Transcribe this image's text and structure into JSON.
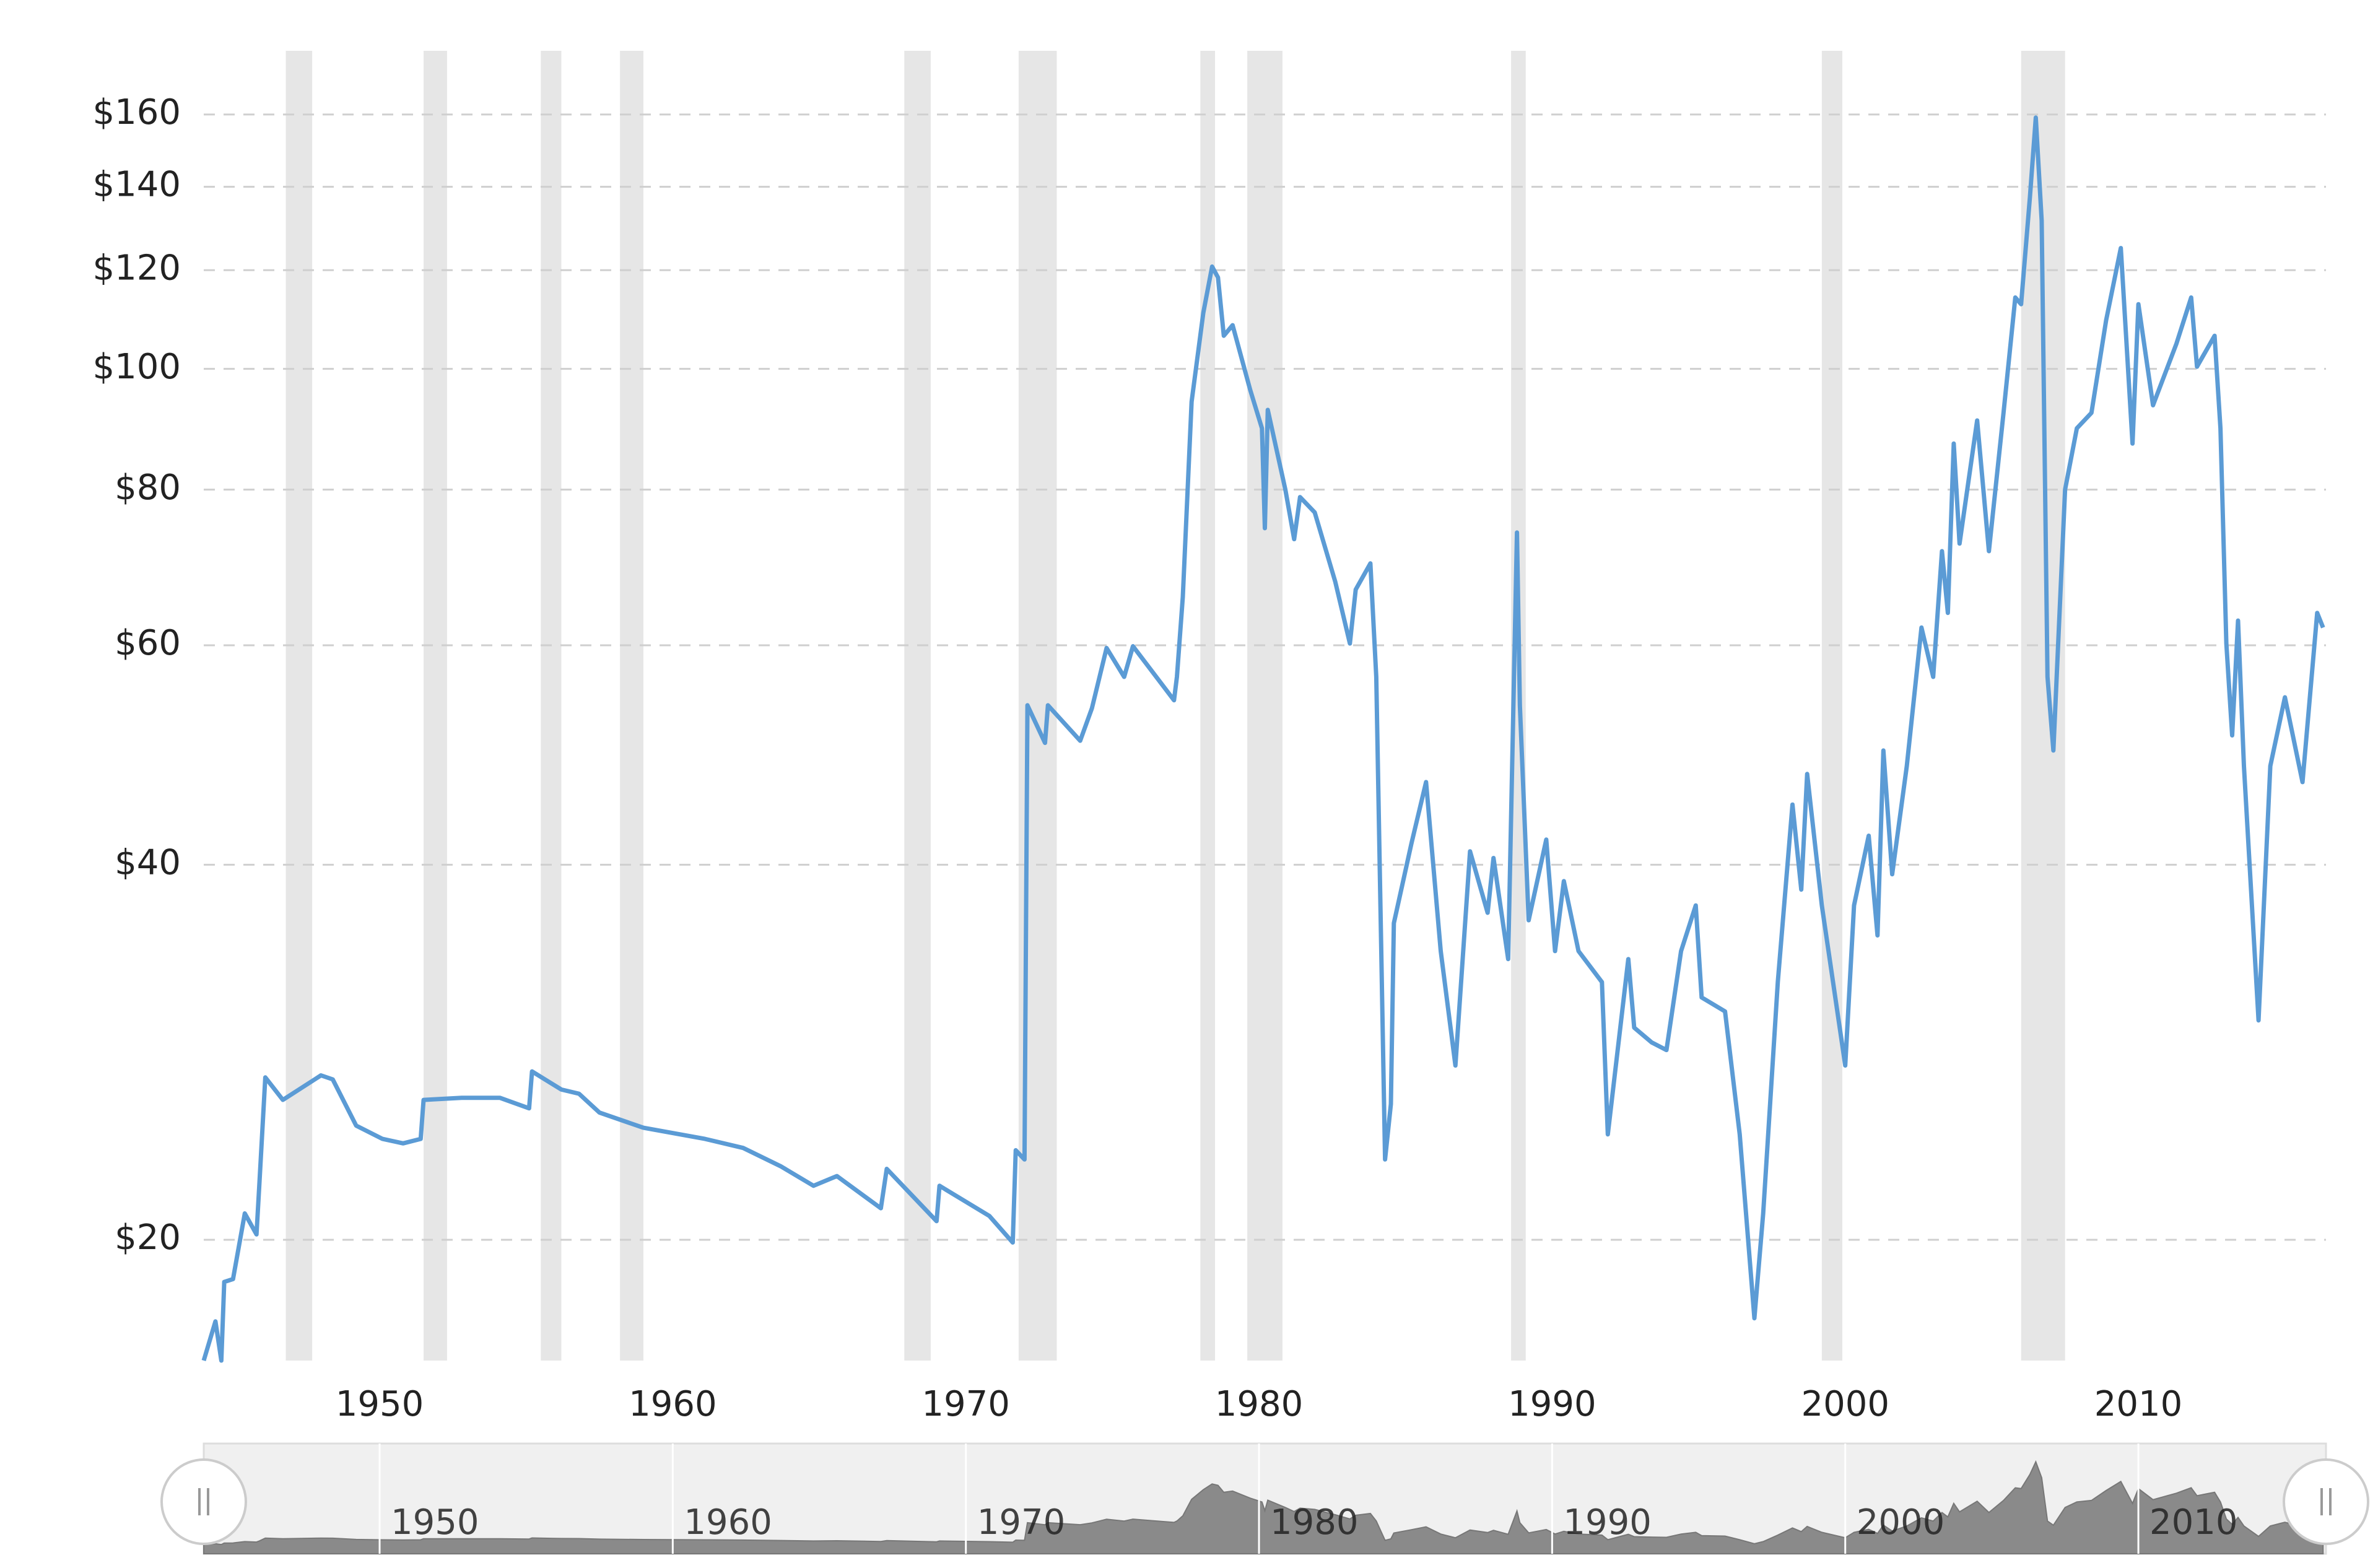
{
  "chart_data": {
    "type": "line",
    "color": "#5b9bd5",
    "ylog": true,
    "grid": true,
    "recession_color": "#e6e6e6",
    "xlim": [
      1944,
      2016.4
    ],
    "ylim": [
      16,
      180
    ],
    "xticks": [
      1950,
      1960,
      1970,
      1980,
      1990,
      2000,
      2010
    ],
    "yticks": [
      {
        "value": 20,
        "label": "$20"
      },
      {
        "value": 40,
        "label": "$40"
      },
      {
        "value": 60,
        "label": "$60"
      },
      {
        "value": 80,
        "label": "$80"
      },
      {
        "value": 100,
        "label": "$100"
      },
      {
        "value": 120,
        "label": "$120"
      },
      {
        "value": 140,
        "label": "$140"
      },
      {
        "value": 160,
        "label": "$160"
      }
    ],
    "recessions": [
      [
        1946.8,
        1947.7
      ],
      [
        1951.5,
        1952.3
      ],
      [
        1955.5,
        1956.2
      ],
      [
        1958.2,
        1959.0
      ],
      [
        1967.9,
        1968.8
      ],
      [
        1971.8,
        1973.1
      ],
      [
        1978.0,
        1978.5
      ],
      [
        1979.6,
        1980.8
      ],
      [
        1988.6,
        1989.1
      ],
      [
        1999.2,
        1999.9
      ],
      [
        2006.0,
        2007.5
      ]
    ],
    "x": [
      1944.0,
      1944.4,
      1944.6,
      1944.7,
      1945.0,
      1945.4,
      1945.8,
      1945.9,
      1946.1,
      1946.7,
      1948.0,
      1948.4,
      1949.2,
      1950.1,
      1950.8,
      1951.4,
      1951.5,
      1952.8,
      1954.1,
      1955.1,
      1955.2,
      1956.2,
      1956.8,
      1957.5,
      1959.0,
      1961.1,
      1962.4,
      1963.7,
      1964.8,
      1965.6,
      1967.1,
      1967.3,
      1969.0,
      1969.1,
      1970.8,
      1971.6,
      1971.7,
      1972.0,
      1972.1,
      1972.7,
      1972.8,
      1973.9,
      1974.3,
      1974.8,
      1975.4,
      1975.7,
      1977.1,
      1977.2,
      1977.4,
      1977.7,
      1978.1,
      1978.4,
      1978.6,
      1978.8,
      1979.1,
      1979.7,
      1980.1,
      1980.2,
      1980.3,
      1980.9,
      1981.2,
      1981.4,
      1981.9,
      1982.6,
      1983.1,
      1983.3,
      1983.8,
      1984.0,
      1984.3,
      1984.5,
      1984.6,
      1985.2,
      1985.7,
      1986.2,
      1986.7,
      1987.2,
      1987.8,
      1988.0,
      1988.5,
      1988.8,
      1988.9,
      1989.2,
      1989.8,
      1990.1,
      1990.4,
      1990.9,
      1991.7,
      1991.9,
      1992.6,
      1992.8,
      1993.4,
      1993.9,
      1994.4,
      1994.9,
      1995.1,
      1995.9,
      1996.4,
      1996.9,
      1997.2,
      1997.7,
      1998.2,
      1998.5,
      1998.7,
      1999.2,
      2000.0,
      2000.3,
      2000.8,
      2001.1,
      2001.3,
      2001.6,
      2002.1,
      2002.6,
      2003.0,
      2003.3,
      2003.5,
      2003.7,
      2003.9,
      2004.5,
      2004.9,
      2005.4,
      2005.8,
      2006.0,
      2006.3,
      2006.5,
      2006.7,
      2006.9,
      2007.1,
      2007.5,
      2007.9,
      2008.4,
      2008.9,
      2009.4,
      2009.8,
      2010.0,
      2010.5,
      2011.3,
      2011.8,
      2012.0,
      2012.6,
      2012.8,
      2013.0,
      2013.2,
      2013.4,
      2013.6,
      2014.1,
      2014.5,
      2015.0,
      2015.6,
      2016.1,
      2016.3
    ],
    "values": [
      16,
      17.2,
      16,
      18.5,
      18.6,
      21.0,
      20.2,
      22.2,
      27.0,
      25.9,
      27.1,
      26.9,
      24.7,
      24.1,
      23.9,
      24.1,
      25.9,
      26.0,
      26.0,
      25.5,
      27.3,
      26.4,
      26.2,
      25.3,
      24.6,
      24.1,
      23.7,
      22.9,
      22.1,
      22.5,
      21.2,
      22.8,
      20.7,
      22.1,
      20.9,
      19.9,
      23.6,
      23.2,
      53.7,
      50.1,
      53.7,
      50.3,
      53.4,
      59.7,
      56.6,
      59.9,
      54.2,
      56.6,
      65.6,
      94.1,
      110.9,
      120.8,
      118.4,
      106.3,
      108.4,
      96.2,
      89.6,
      74.5,
      92.7,
      80,
      73.0,
      78.9,
      76.7,
      67.5,
      60.2,
      66.5,
      69.8,
      56.6,
      23.2,
      25.7,
      35.9,
      41.6,
      46.6,
      34.1,
      27.6,
      41.0,
      36.6,
      40.5,
      33.6,
      73.9,
      53.7,
      36.1,
      41.9,
      34.1,
      38.8,
      34.1,
      32.2,
      24.3,
      33.6,
      29.6,
      28.8,
      28.4,
      34.1,
      37.1,
      31.3,
      30.5,
      24.3,
      17.3,
      21.0,
      32.2,
      44.7,
      38.2,
      47.3,
      37.1,
      27.6,
      37.1,
      42.2,
      35.1,
      49.4,
      39.3,
      48.0,
      62.0,
      56.6,
      71.4,
      63.7,
      87.1,
      72.4,
      90.9,
      71.4,
      92.2,
      114.1,
      112.7,
      137.3,
      159.1,
      131.5,
      56.6,
      49.4,
      80,
      89.6,
      92.2,
      109.4,
      125,
      87.1,
      112.7,
      93.5,
      104.8,
      114.1,
      100.4,
      106.3,
      89.6,
      60.2,
      50.8,
      62.8,
      48.0,
      30.0,
      48.0,
      54.5,
      46.6,
      63.7,
      62.0
    ]
  }
}
